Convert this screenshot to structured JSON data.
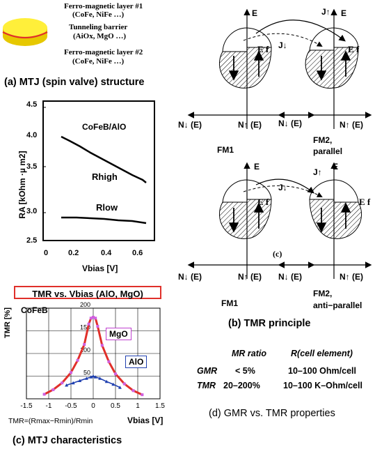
{
  "mtj": {
    "layer1_title": "Ferro-magnetic layer #1",
    "layer1_mat": "(CoFe, NiFe …)",
    "barrier_title": "Tunneling barrier",
    "barrier_mat": "(AiOx, MgO …)",
    "layer2_title": "Ferro-magnetic layer #2",
    "layer2_mat": "(CoFe, NiFe …)",
    "caption": "(a) MTJ (spin valve) structure",
    "colors": {
      "disk_top": "#ffef3a",
      "disk_side": "#e6c800",
      "barrier": "#e0302a"
    }
  },
  "ra_plot": {
    "ylabel": "RA [kOhm ·µ m2]",
    "xlabel": "Vbias [V]",
    "yticks": [
      "4.5",
      "4.0",
      "3.5",
      "3.0",
      "2.5"
    ],
    "xticks": [
      "0",
      "0.2",
      "0.4",
      "0.6"
    ],
    "label_material": "CoFeB/AlO",
    "label_high": "Rhigh",
    "label_low": "Rlow"
  },
  "chart_data": {
    "type": "line",
    "title": "TMR vs. Vbias (AlO, MgO)",
    "subtitle": "CoFeB",
    "xlabel": "Vbias [V]",
    "ylabel": "TMR [%]",
    "xlim": [
      -1.5,
      1.5
    ],
    "ylim": [
      0,
      200
    ],
    "grid": true,
    "xticks": [
      "-1.5",
      "-1",
      "-0.5",
      "0",
      "0.5",
      "1",
      "1.5"
    ],
    "yticks": [
      "200",
      "150",
      "100",
      "50"
    ],
    "formula": "TMR=(Rmax−Rmin)/Rmin",
    "series": [
      {
        "name": "MgO",
        "color": "#e0302a",
        "marker_color": "#d060e0",
        "x": [
          -1.1,
          -0.9,
          -0.7,
          -0.5,
          -0.35,
          -0.2,
          -0.1,
          -0.05,
          0,
          0.05,
          0.1,
          0.2,
          0.35,
          0.5,
          0.7,
          0.9,
          1.1
        ],
        "y": [
          10,
          20,
          35,
          58,
          85,
          120,
          165,
          178,
          180,
          178,
          160,
          118,
          82,
          55,
          33,
          18,
          9
        ]
      },
      {
        "name": "AlO",
        "color": "#2040b0",
        "x": [
          -0.6,
          -0.45,
          -0.3,
          -0.15,
          -0.05,
          0,
          0.05,
          0.15,
          0.3,
          0.45,
          0.6
        ],
        "y": [
          30,
          35,
          40,
          45,
          48,
          50,
          48,
          45,
          38,
          32,
          25
        ]
      }
    ]
  },
  "tmr_principle": {
    "E": "E",
    "Ef": "E f",
    "J_up": "J↑",
    "J_down": "J↓",
    "N_down": "N↓ (E)",
    "N_up": "N↑ (E)",
    "FM1": "FM1",
    "FM2_par_1": "FM2,",
    "FM2_par_2": "parallel",
    "FM2_anti_1": "FM2,",
    "FM2_anti_2": "anti−parallel",
    "c_label": "(c)",
    "caption": "(b) TMR principle"
  },
  "properties": {
    "col1": "MR ratio",
    "col2": "R(cell element)",
    "rows": [
      {
        "name": "GMR",
        "ratio": "< 5%",
        "r": "10–100 Ohm/cell"
      },
      {
        "name": "TMR",
        "ratio": "20–200%",
        "r": "10–100 K–Ohm/cell"
      }
    ],
    "caption": "(d) GMR vs. TMR properties"
  },
  "char_caption": "(c) MTJ characteristics"
}
